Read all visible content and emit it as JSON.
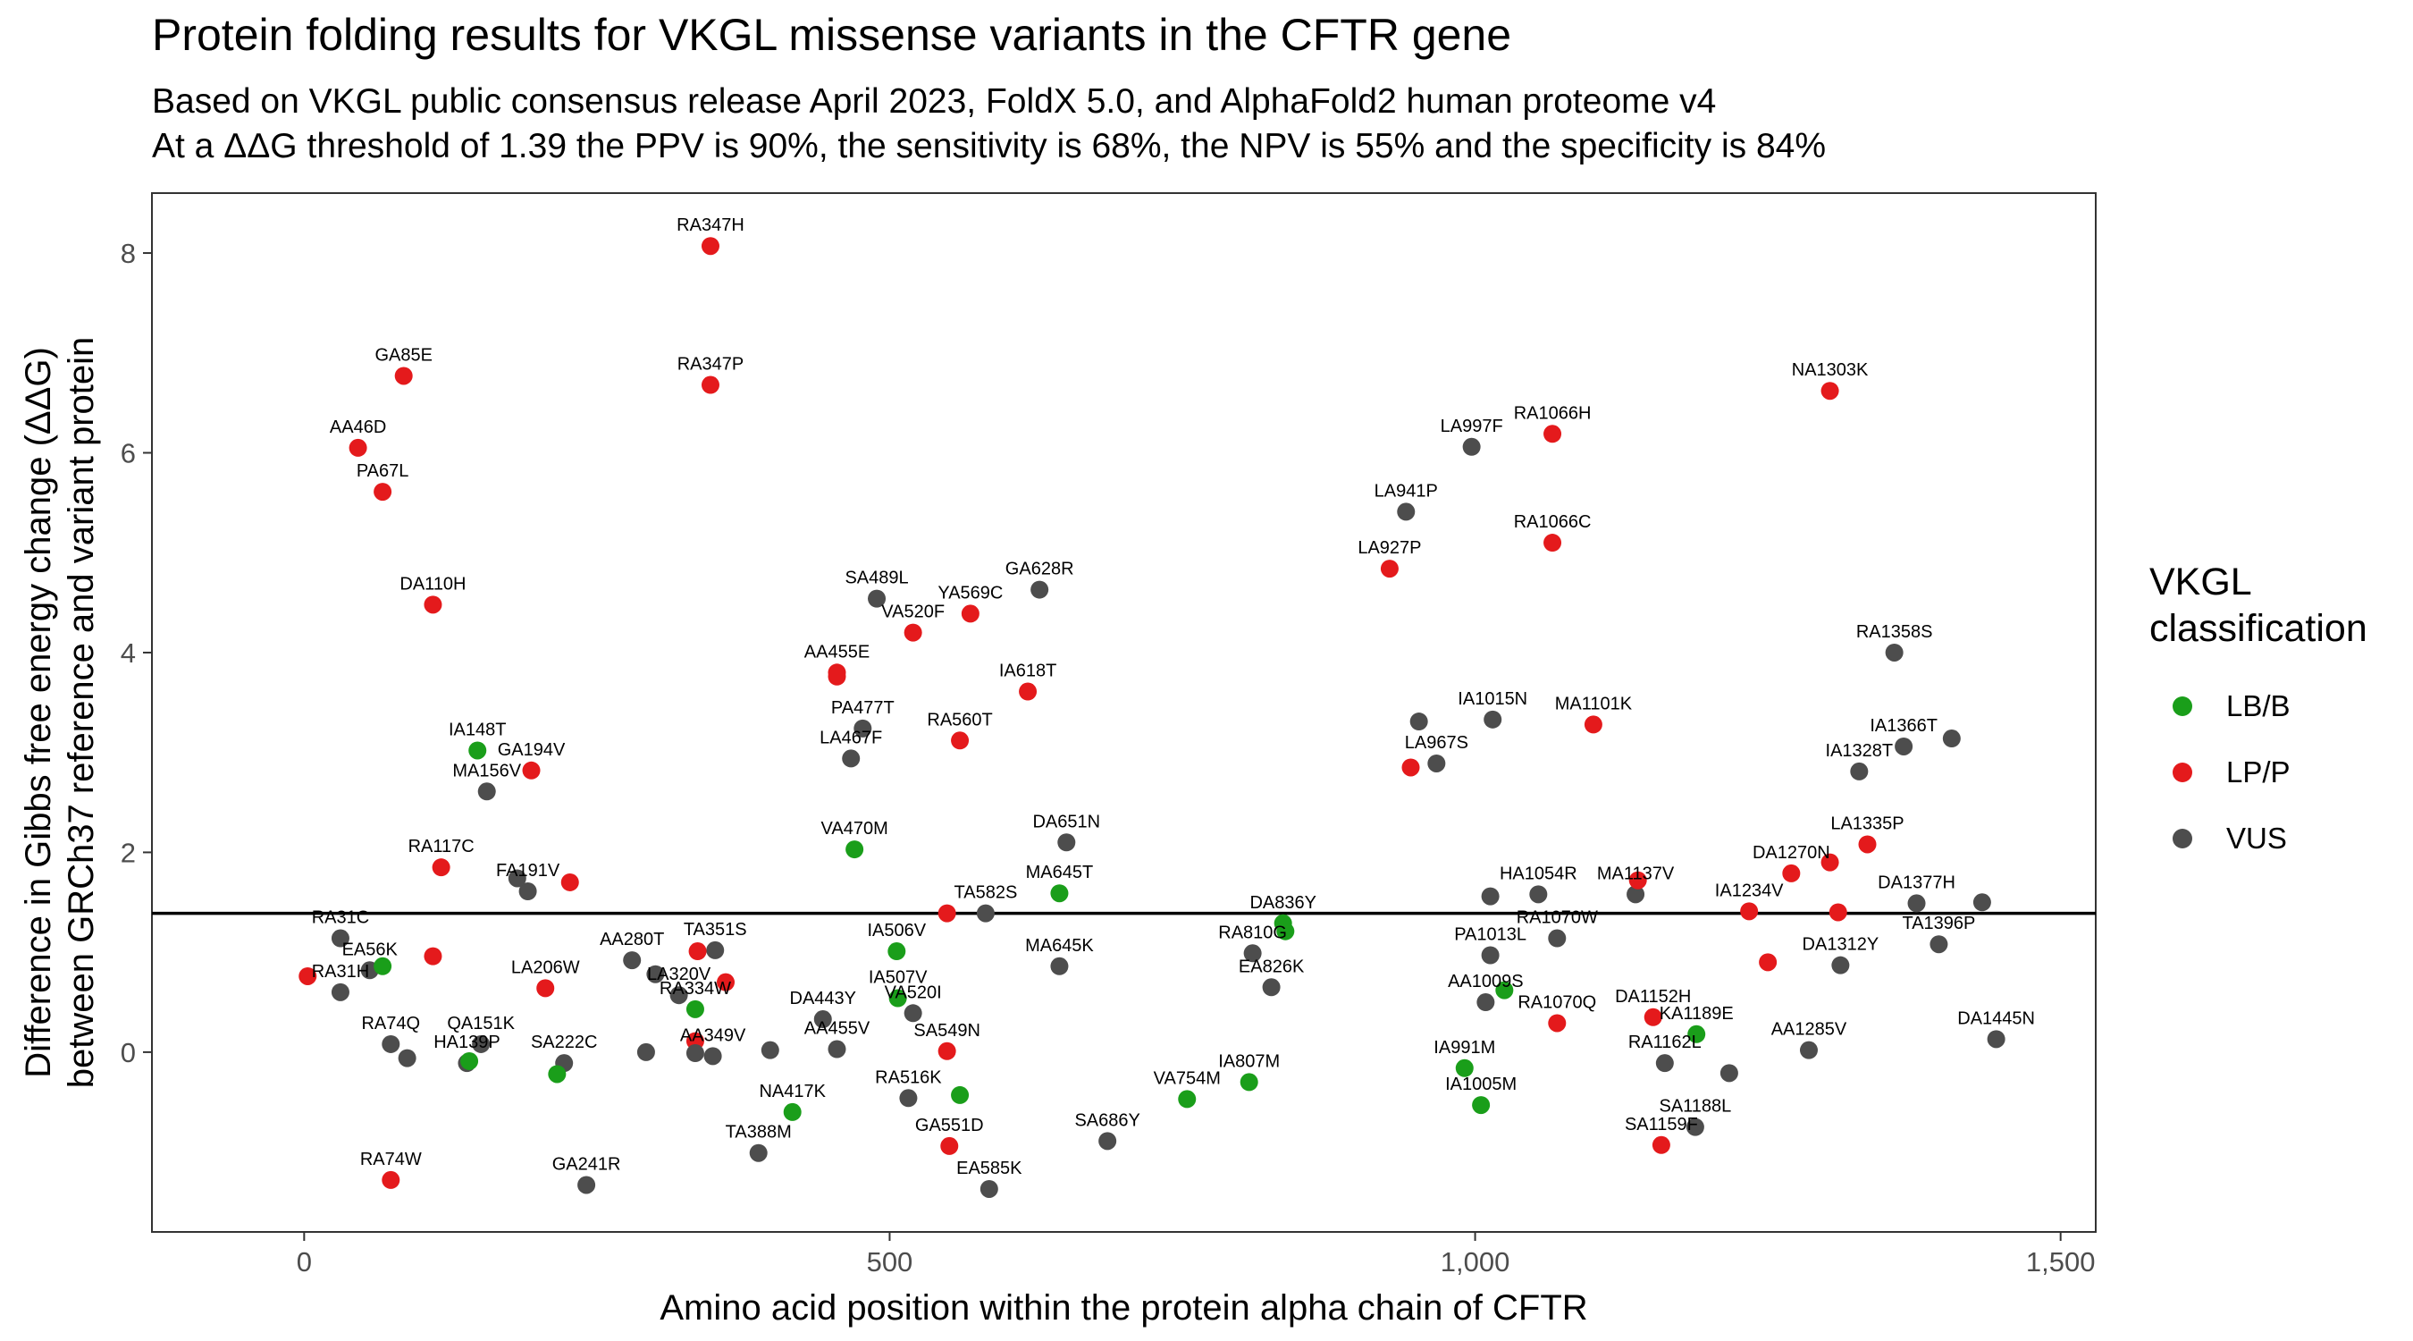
{
  "title": "Protein folding results for VKGL missense variants in the CFTR gene",
  "subtitle_line1": "Based on VKGL public consensus release April 2023, FoldX 5.0, and AlphaFold2 human proteome v4",
  "subtitle_line2": "At a ΔΔG threshold of 1.39 the PPV is 90%, the sensitivity is 68%, the NPV is 55% and the specificity is 84%",
  "legend": {
    "title_line1": "VKGL",
    "title_line2": "classification",
    "items": [
      {
        "label": "LB/B",
        "color": "#1a9e1a"
      },
      {
        "label": "LP/P",
        "color": "#e41a1c"
      },
      {
        "label": "VUS",
        "color": "#4d4d4d"
      }
    ]
  },
  "chart_data": {
    "type": "scatter",
    "xlabel": "Amino acid position within the protein alpha chain of CFTR",
    "ylabel_line1": "Difference in Gibbs free energy change (ΔΔG)",
    "ylabel_line2": "between GRCh37 reference and variant protein",
    "xlim": [
      -130,
      1530
    ],
    "ylim": [
      -1.8,
      8.6
    ],
    "xticks": [
      0,
      500,
      1000,
      1500
    ],
    "xtick_labels": [
      "0",
      "500",
      "1,000",
      "1,500"
    ],
    "yticks": [
      0,
      2,
      4,
      6,
      8
    ],
    "ytick_labels": [
      "0",
      "2",
      "4",
      "6",
      "8"
    ],
    "threshold": 1.39,
    "grid": false,
    "legend_position": "right",
    "colors": {
      "LB/B": "#1a9e1a",
      "LP/P": "#e41a1c",
      "VUS": "#4d4d4d"
    },
    "points": [
      {
        "x": 347,
        "y": 8.07,
        "label": "RA347H",
        "class": "LP/P"
      },
      {
        "x": 347,
        "y": 6.68,
        "label": "RA347P",
        "class": "LP/P"
      },
      {
        "x": 85,
        "y": 6.77,
        "label": "GA85E",
        "class": "LP/P"
      },
      {
        "x": 46,
        "y": 6.05,
        "label": "AA46D",
        "class": "LP/P"
      },
      {
        "x": 67,
        "y": 5.61,
        "label": "PA67L",
        "class": "LP/P"
      },
      {
        "x": 110,
        "y": 4.48,
        "label": "DA110H",
        "class": "LP/P"
      },
      {
        "x": 148,
        "y": 3.02,
        "label": "IA148T",
        "class": "LB/B"
      },
      {
        "x": 194,
        "y": 2.82,
        "label": "GA194V",
        "class": "LP/P"
      },
      {
        "x": 156,
        "y": 2.61,
        "label": "MA156V",
        "class": "VUS"
      },
      {
        "x": 117,
        "y": 1.85,
        "label": "RA117C",
        "class": "LP/P"
      },
      {
        "x": 191,
        "y": 1.61,
        "label": "FA191V",
        "class": "VUS"
      },
      {
        "x": 182,
        "y": 1.74,
        "label": "",
        "class": "VUS"
      },
      {
        "x": 227,
        "y": 1.7,
        "label": "",
        "class": "LP/P"
      },
      {
        "x": 31,
        "y": 1.14,
        "label": "RA31C",
        "class": "VUS"
      },
      {
        "x": 56,
        "y": 0.82,
        "label": "EA56K",
        "class": "VUS"
      },
      {
        "x": 67,
        "y": 0.86,
        "label": "",
        "class": "LB/B"
      },
      {
        "x": 110,
        "y": 0.96,
        "label": "",
        "class": "LP/P"
      },
      {
        "x": 31,
        "y": 0.6,
        "label": "RA31H",
        "class": "VUS"
      },
      {
        "x": 3,
        "y": 0.76,
        "label": "",
        "class": "LP/P"
      },
      {
        "x": 74,
        "y": 0.08,
        "label": "RA74Q",
        "class": "VUS"
      },
      {
        "x": 88,
        "y": -0.06,
        "label": "",
        "class": "VUS"
      },
      {
        "x": 151,
        "y": 0.08,
        "label": "QA151K",
        "class": "VUS"
      },
      {
        "x": 139,
        "y": -0.11,
        "label": "HA139P",
        "class": "VUS"
      },
      {
        "x": 141,
        "y": -0.09,
        "label": "",
        "class": "LB/B"
      },
      {
        "x": 222,
        "y": -0.11,
        "label": "SA222C",
        "class": "VUS"
      },
      {
        "x": 216,
        "y": -0.22,
        "label": "",
        "class": "LB/B"
      },
      {
        "x": 206,
        "y": 0.64,
        "label": "LA206W",
        "class": "LP/P"
      },
      {
        "x": 74,
        "y": -1.28,
        "label": "RA74W",
        "class": "LP/P"
      },
      {
        "x": 241,
        "y": -1.33,
        "label": "GA241R",
        "class": "VUS"
      },
      {
        "x": 280,
        "y": 0.92,
        "label": "AA280T",
        "class": "VUS"
      },
      {
        "x": 351,
        "y": 1.02,
        "label": "TA351S",
        "class": "VUS"
      },
      {
        "x": 336,
        "y": 1.01,
        "label": "",
        "class": "LP/P"
      },
      {
        "x": 300,
        "y": 0.78,
        "label": "",
        "class": "VUS"
      },
      {
        "x": 320,
        "y": 0.57,
        "label": "LA320V",
        "class": "VUS"
      },
      {
        "x": 360,
        "y": 0.7,
        "label": "",
        "class": "LP/P"
      },
      {
        "x": 334,
        "y": 0.43,
        "label": "RA334W",
        "class": "LB/B"
      },
      {
        "x": 334,
        "y": 0.11,
        "label": "",
        "class": "LP/P"
      },
      {
        "x": 349,
        "y": -0.04,
        "label": "AA349V",
        "class": "VUS"
      },
      {
        "x": 334,
        "y": -0.01,
        "label": "",
        "class": "VUS"
      },
      {
        "x": 292,
        "y": 0.0,
        "label": "",
        "class": "VUS"
      },
      {
        "x": 398,
        "y": 0.02,
        "label": "",
        "class": "VUS"
      },
      {
        "x": 388,
        "y": -1.01,
        "label": "TA388M",
        "class": "VUS"
      },
      {
        "x": 417,
        "y": -0.6,
        "label": "NA417K",
        "class": "LB/B"
      },
      {
        "x": 443,
        "y": 0.33,
        "label": "DA443Y",
        "class": "VUS"
      },
      {
        "x": 455,
        "y": 0.03,
        "label": "AA455V",
        "class": "VUS"
      },
      {
        "x": 455,
        "y": 3.8,
        "label": "AA455E",
        "class": "LP/P"
      },
      {
        "x": 455,
        "y": 3.76,
        "label": "",
        "class": "LP/P"
      },
      {
        "x": 470,
        "y": 2.03,
        "label": "VA470M",
        "class": "LB/B"
      },
      {
        "x": 477,
        "y": 3.24,
        "label": "PA477T",
        "class": "VUS"
      },
      {
        "x": 467,
        "y": 2.94,
        "label": "LA467F",
        "class": "VUS"
      },
      {
        "x": 489,
        "y": 4.54,
        "label": "SA489L",
        "class": "VUS"
      },
      {
        "x": 506,
        "y": 1.01,
        "label": "IA506V",
        "class": "LB/B"
      },
      {
        "x": 507,
        "y": 0.54,
        "label": "IA507V",
        "class": "LB/B"
      },
      {
        "x": 520,
        "y": 0.39,
        "label": "VA520I",
        "class": "VUS"
      },
      {
        "x": 520,
        "y": 4.2,
        "label": "VA520F",
        "class": "LP/P"
      },
      {
        "x": 569,
        "y": 4.39,
        "label": "YA569C",
        "class": "LP/P"
      },
      {
        "x": 516,
        "y": -0.46,
        "label": "RA516K",
        "class": "VUS"
      },
      {
        "x": 549,
        "y": 0.01,
        "label": "SA549N",
        "class": "LP/P"
      },
      {
        "x": 560,
        "y": -0.43,
        "label": "",
        "class": "LB/B"
      },
      {
        "x": 551,
        "y": -0.94,
        "label": "GA551D",
        "class": "LP/P"
      },
      {
        "x": 585,
        "y": -1.37,
        "label": "EA585K",
        "class": "VUS"
      },
      {
        "x": 560,
        "y": 3.12,
        "label": "RA560T",
        "class": "LP/P"
      },
      {
        "x": 582,
        "y": 1.39,
        "label": "TA582S",
        "class": "VUS"
      },
      {
        "x": 549,
        "y": 1.39,
        "label": "",
        "class": "LP/P"
      },
      {
        "x": 618,
        "y": 3.61,
        "label": "IA618T",
        "class": "LP/P"
      },
      {
        "x": 628,
        "y": 4.63,
        "label": "GA628R",
        "class": "VUS"
      },
      {
        "x": 645,
        "y": 1.59,
        "label": "MA645T",
        "class": "LB/B"
      },
      {
        "x": 651,
        "y": 2.1,
        "label": "DA651N",
        "class": "VUS"
      },
      {
        "x": 645,
        "y": 0.86,
        "label": "MA645K",
        "class": "VUS"
      },
      {
        "x": 686,
        "y": -0.89,
        "label": "SA686Y",
        "class": "VUS"
      },
      {
        "x": 754,
        "y": -0.47,
        "label": "VA754M",
        "class": "LB/B"
      },
      {
        "x": 807,
        "y": -0.3,
        "label": "IA807M",
        "class": "LB/B"
      },
      {
        "x": 810,
        "y": 0.99,
        "label": "RA810G",
        "class": "VUS"
      },
      {
        "x": 826,
        "y": 0.65,
        "label": "EA826K",
        "class": "VUS"
      },
      {
        "x": 836,
        "y": 1.29,
        "label": "DA836Y",
        "class": "LB/B"
      },
      {
        "x": 838,
        "y": 1.21,
        "label": "",
        "class": "LB/B"
      },
      {
        "x": 927,
        "y": 4.84,
        "label": "LA927P",
        "class": "LP/P"
      },
      {
        "x": 941,
        "y": 5.41,
        "label": "LA941P",
        "class": "VUS"
      },
      {
        "x": 997,
        "y": 6.06,
        "label": "LA997F",
        "class": "VUS"
      },
      {
        "x": 1066,
        "y": 6.19,
        "label": "RA1066H",
        "class": "LP/P"
      },
      {
        "x": 1066,
        "y": 5.1,
        "label": "RA1066C",
        "class": "LP/P"
      },
      {
        "x": 952,
        "y": 3.31,
        "label": "",
        "class": "VUS"
      },
      {
        "x": 1015,
        "y": 3.33,
        "label": "IA1015N",
        "class": "VUS"
      },
      {
        "x": 1101,
        "y": 3.28,
        "label": "MA1101K",
        "class": "LP/P"
      },
      {
        "x": 967,
        "y": 2.89,
        "label": "LA967S",
        "class": "VUS"
      },
      {
        "x": 945,
        "y": 2.85,
        "label": "",
        "class": "LP/P"
      },
      {
        "x": 1054,
        "y": 1.58,
        "label": "HA1054R",
        "class": "VUS"
      },
      {
        "x": 1013,
        "y": 1.56,
        "label": "",
        "class": "VUS"
      },
      {
        "x": 1137,
        "y": 1.58,
        "label": "MA1137V",
        "class": "VUS"
      },
      {
        "x": 1139,
        "y": 1.72,
        "label": "",
        "class": "LP/P"
      },
      {
        "x": 1070,
        "y": 1.14,
        "label": "RA1070W",
        "class": "VUS"
      },
      {
        "x": 1013,
        "y": 0.97,
        "label": "PA1013L",
        "class": "VUS"
      },
      {
        "x": 1009,
        "y": 0.5,
        "label": "AA1009S",
        "class": "VUS"
      },
      {
        "x": 1025,
        "y": 0.62,
        "label": "",
        "class": "LB/B"
      },
      {
        "x": 1070,
        "y": 0.29,
        "label": "RA1070Q",
        "class": "LP/P"
      },
      {
        "x": 991,
        "y": -0.16,
        "label": "IA991M",
        "class": "LB/B"
      },
      {
        "x": 1005,
        "y": -0.53,
        "label": "IA1005M",
        "class": "LB/B"
      },
      {
        "x": 1152,
        "y": 0.35,
        "label": "DA1152H",
        "class": "LP/P"
      },
      {
        "x": 1189,
        "y": 0.18,
        "label": "KA1189E",
        "class": "LB/B"
      },
      {
        "x": 1162,
        "y": -0.11,
        "label": "RA1162L",
        "class": "VUS"
      },
      {
        "x": 1217,
        "y": -0.21,
        "label": "",
        "class": "VUS"
      },
      {
        "x": 1188,
        "y": -0.75,
        "label": "SA1188L",
        "class": "VUS"
      },
      {
        "x": 1159,
        "y": -0.93,
        "label": "SA1159F",
        "class": "LP/P"
      },
      {
        "x": 1234,
        "y": 1.41,
        "label": "IA1234V",
        "class": "LP/P"
      },
      {
        "x": 1250,
        "y": 0.9,
        "label": "",
        "class": "LP/P"
      },
      {
        "x": 1270,
        "y": 1.79,
        "label": "DA1270N",
        "class": "LP/P"
      },
      {
        "x": 1303,
        "y": 1.9,
        "label": "",
        "class": "LP/P"
      },
      {
        "x": 1303,
        "y": 6.62,
        "label": "NA1303K",
        "class": "LP/P"
      },
      {
        "x": 1335,
        "y": 2.08,
        "label": "LA1335P",
        "class": "LP/P"
      },
      {
        "x": 1310,
        "y": 1.4,
        "label": "",
        "class": "LP/P"
      },
      {
        "x": 1312,
        "y": 0.87,
        "label": "DA1312Y",
        "class": "VUS"
      },
      {
        "x": 1285,
        "y": 0.02,
        "label": "AA1285V",
        "class": "VUS"
      },
      {
        "x": 1358,
        "y": 4.0,
        "label": "RA1358S",
        "class": "VUS"
      },
      {
        "x": 1366,
        "y": 3.06,
        "label": "IA1366T",
        "class": "VUS"
      },
      {
        "x": 1328,
        "y": 2.81,
        "label": "IA1328T",
        "class": "VUS"
      },
      {
        "x": 1407,
        "y": 3.14,
        "label": "",
        "class": "VUS"
      },
      {
        "x": 1377,
        "y": 1.49,
        "label": "DA1377H",
        "class": "VUS"
      },
      {
        "x": 1396,
        "y": 1.08,
        "label": "TA1396P",
        "class": "VUS"
      },
      {
        "x": 1433,
        "y": 1.5,
        "label": "",
        "class": "VUS"
      },
      {
        "x": 1445,
        "y": 0.13,
        "label": "DA1445N",
        "class": "VUS"
      }
    ]
  }
}
